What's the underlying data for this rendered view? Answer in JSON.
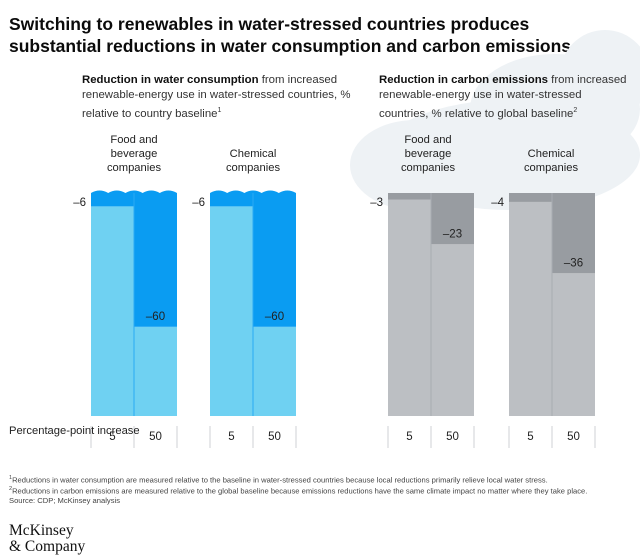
{
  "title": "Switching to renewables in water-stressed countries produces substantial reductions in water consumption and carbon emissions.",
  "panels": [
    {
      "heading_bold": "Reduction in water consumption",
      "heading_rest": " from increased renewable-energy use in water-stressed countries, % relative to country baseline",
      "footnote_mark": "1"
    },
    {
      "heading_bold": "Reduction in carbon emissions",
      "heading_rest": " from increased renewable-energy use in water-stressed countries, % relative to global baseline",
      "footnote_mark": "2"
    }
  ],
  "x_label": "Percentage-point increase",
  "chart_data": [
    {
      "type": "bar",
      "metric": "Reduction in water consumption",
      "groups": [
        {
          "name": "Food and beverage companies",
          "categories": [
            "5",
            "50"
          ],
          "values": [
            -6,
            -60
          ],
          "labels": [
            "–6",
            "–60"
          ]
        },
        {
          "name": "Chemical companies",
          "categories": [
            "5",
            "50"
          ],
          "values": [
            -6,
            -60
          ],
          "labels": [
            "–6",
            "–60"
          ]
        }
      ],
      "ylim": [
        -100,
        0
      ],
      "colors": {
        "remaining": "#6fd1f2",
        "reduction": "#0a9cf2",
        "divider": "#2aaaf4"
      }
    },
    {
      "type": "bar",
      "metric": "Reduction in carbon emissions",
      "groups": [
        {
          "name": "Food and beverage companies",
          "categories": [
            "5",
            "50"
          ],
          "values": [
            -3,
            -23
          ],
          "labels": [
            "–3",
            "–23"
          ]
        },
        {
          "name": "Chemical companies",
          "categories": [
            "5",
            "50"
          ],
          "values": [
            -4,
            -36
          ],
          "labels": [
            "–4",
            "–36"
          ]
        }
      ],
      "ylim": [
        -100,
        0
      ],
      "colors": {
        "remaining": "#bcbfc3",
        "reduction": "#989ca1",
        "divider": "#a9adb2"
      }
    }
  ],
  "footnotes": [
    {
      "mark": "1",
      "text": "Reductions in water consumption are measured relative to the baseline in water-stressed countries because local reductions primarily relieve local water stress."
    },
    {
      "mark": "2",
      "text": "Reductions in carbon emissions are measured relative to the global baseline because emissions reductions have the same climate impact no matter where they take place."
    }
  ],
  "source": "Source: CDP; McKinsey analysis",
  "logo": {
    "line1": "McKinsey",
    "line2": "& Company"
  }
}
